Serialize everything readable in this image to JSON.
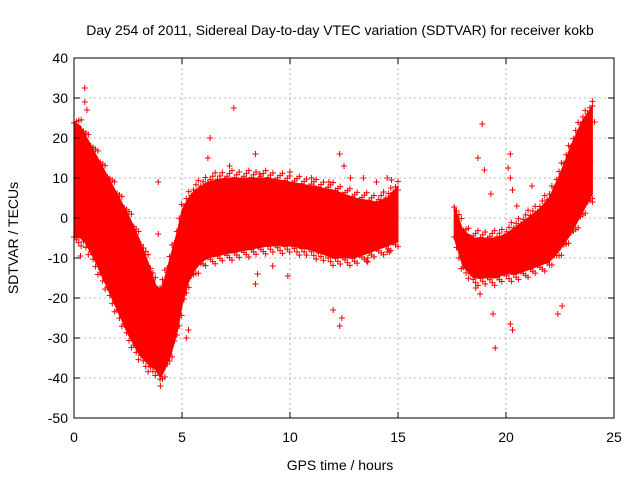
{
  "chart_data": {
    "type": "scatter",
    "title": "Day 254 of 2011, Sidereal Day-to-day VTEC variation (SDTVAR) for receiver kokb",
    "xlabel": "GPS time / hours",
    "ylabel": "SDTVAR / TECUs",
    "xlim": [
      0,
      25
    ],
    "ylim": [
      -50,
      40
    ],
    "xticks": [
      0,
      5,
      10,
      15,
      20,
      25
    ],
    "yticks": [
      -50,
      -40,
      -30,
      -20,
      -10,
      0,
      10,
      20,
      30,
      40
    ],
    "grid": true,
    "marker": "+",
    "color": "#ff0000",
    "band_segments": [
      {
        "name": "segment-1",
        "x": [
          0.0,
          0.3,
          0.5,
          1.0,
          1.5,
          2.0,
          2.5,
          3.0,
          3.5,
          3.8,
          4.0,
          4.2,
          4.5,
          4.8,
          5.0,
          5.3,
          5.6,
          5.9,
          6.2
        ],
        "upper": [
          24,
          23,
          21,
          16,
          11,
          6,
          1,
          -5,
          -12,
          -17,
          -18,
          -15,
          -9,
          -3,
          2,
          5,
          7,
          8,
          9
        ],
        "lower": [
          -5,
          -5,
          -6,
          -11,
          -17,
          -23,
          -29,
          -34,
          -37,
          -38,
          -40,
          -38,
          -34,
          -28,
          -22,
          -16,
          -13,
          -11,
          -10
        ]
      },
      {
        "name": "segment-2",
        "x": [
          6.2,
          7.0,
          8.0,
          9.0,
          10.0,
          11.0,
          12.0,
          13.0,
          14.0,
          14.5,
          15.0
        ],
        "upper": [
          9,
          10,
          10,
          10,
          9,
          8,
          7,
          5,
          4,
          5,
          8
        ],
        "lower": [
          -10,
          -9,
          -8,
          -7,
          -7,
          -8,
          -10,
          -10,
          -8,
          -7,
          -6
        ]
      },
      {
        "name": "segment-3",
        "x": [
          17.6,
          18.0,
          18.5,
          19.0,
          19.5,
          20.0,
          20.5,
          21.0,
          21.5,
          22.0,
          22.5,
          23.0,
          23.5,
          24.0
        ],
        "upper": [
          3,
          -3,
          -5,
          -5,
          -5,
          -4,
          -2,
          0,
          2,
          5,
          11,
          18,
          24,
          28
        ],
        "lower": [
          -5,
          -12,
          -15,
          -15,
          -15,
          -14,
          -14,
          -13,
          -12,
          -11,
          -8,
          -4,
          1,
          6
        ]
      }
    ],
    "outlier_points": [
      {
        "x": 0.5,
        "y": 32.5
      },
      {
        "x": 0.5,
        "y": 29
      },
      {
        "x": 0.6,
        "y": 27
      },
      {
        "x": 0.3,
        "y": -9.5
      },
      {
        "x": 0.3,
        "y": -4
      },
      {
        "x": 3.9,
        "y": 9
      },
      {
        "x": 3.9,
        "y": -4
      },
      {
        "x": 4.0,
        "y": -42
      },
      {
        "x": 5.2,
        "y": -30
      },
      {
        "x": 5.3,
        "y": -28
      },
      {
        "x": 6.3,
        "y": 20
      },
      {
        "x": 6.2,
        "y": 15
      },
      {
        "x": 6.0,
        "y": 8
      },
      {
        "x": 7.4,
        "y": 27.5
      },
      {
        "x": 7.2,
        "y": 13
      },
      {
        "x": 8.4,
        "y": 16
      },
      {
        "x": 8.5,
        "y": -14
      },
      {
        "x": 8.4,
        "y": -16.5
      },
      {
        "x": 8.6,
        "y": 11
      },
      {
        "x": 9.2,
        "y": -12
      },
      {
        "x": 9.9,
        "y": -14.5
      },
      {
        "x": 11.0,
        "y": 10
      },
      {
        "x": 11.1,
        "y": 8
      },
      {
        "x": 10.0,
        "y": 11.5
      },
      {
        "x": 11.8,
        "y": 9
      },
      {
        "x": 12.0,
        "y": -23
      },
      {
        "x": 12.3,
        "y": -27
      },
      {
        "x": 12.4,
        "y": -25
      },
      {
        "x": 12.3,
        "y": 16
      },
      {
        "x": 12.5,
        "y": 13
      },
      {
        "x": 12.8,
        "y": 10
      },
      {
        "x": 13.4,
        "y": 10
      },
      {
        "x": 13.6,
        "y": -11
      },
      {
        "x": 13.6,
        "y": -10
      },
      {
        "x": 14.0,
        "y": 9
      },
      {
        "x": 14.2,
        "y": -5.5
      },
      {
        "x": 14.5,
        "y": -8.5
      },
      {
        "x": 14.6,
        "y": -8.5
      },
      {
        "x": 14.5,
        "y": 10
      },
      {
        "x": 14.7,
        "y": 9.5
      },
      {
        "x": 15.0,
        "y": 7
      },
      {
        "x": 18.7,
        "y": 15
      },
      {
        "x": 18.9,
        "y": 23.5
      },
      {
        "x": 19.0,
        "y": 12
      },
      {
        "x": 19.4,
        "y": -24
      },
      {
        "x": 19.5,
        "y": -32.5
      },
      {
        "x": 19.3,
        "y": 6
      },
      {
        "x": 20.2,
        "y": 16
      },
      {
        "x": 20.1,
        "y": 12.5
      },
      {
        "x": 20.2,
        "y": 10
      },
      {
        "x": 20.3,
        "y": 7
      },
      {
        "x": 20.2,
        "y": -26.5
      },
      {
        "x": 20.3,
        "y": -28
      },
      {
        "x": 20.5,
        "y": 3
      },
      {
        "x": 18.8,
        "y": -19
      },
      {
        "x": 18.6,
        "y": -17.5
      },
      {
        "x": 21.2,
        "y": 8
      },
      {
        "x": 22.4,
        "y": -24
      },
      {
        "x": 22.6,
        "y": -22
      },
      {
        "x": 23.2,
        "y": 0
      },
      {
        "x": 24.0,
        "y": 28
      },
      {
        "x": 24.1,
        "y": 24
      },
      {
        "x": 23.9,
        "y": 14
      },
      {
        "x": 24.0,
        "y": 4
      }
    ]
  }
}
